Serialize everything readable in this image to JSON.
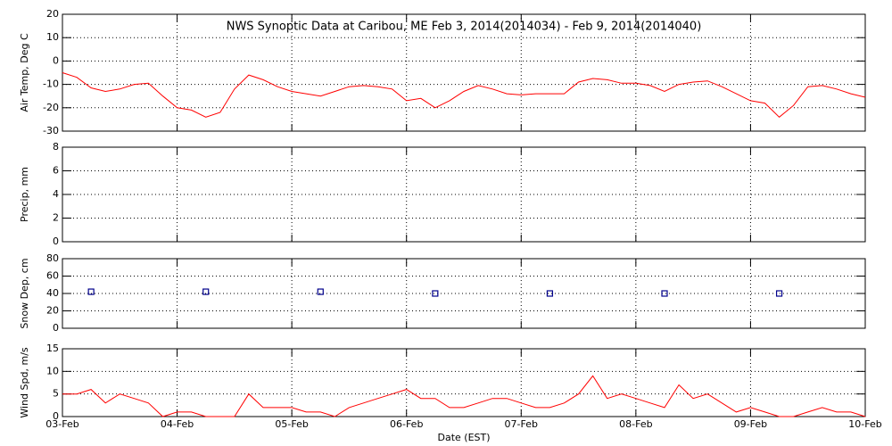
{
  "chart_data": [
    {
      "type": "line",
      "title": "NWS Synoptic Data at Caribou, ME   Feb  3, 2014(2014034) - Feb  9, 2014(2014040)",
      "ylabel": "Air Temp, Deg C",
      "ylim": [
        -30,
        20
      ],
      "yticks": [
        -30,
        -20,
        -10,
        0,
        10,
        20
      ],
      "grid": true,
      "x": [
        0,
        3,
        6,
        9,
        12,
        15,
        18,
        21,
        24,
        27,
        30,
        33,
        36,
        39,
        42,
        45,
        48,
        51,
        54,
        57,
        60,
        63,
        66,
        69,
        72,
        75,
        78,
        81,
        84,
        87,
        90,
        93,
        96,
        99,
        102,
        105,
        108,
        111,
        114,
        117,
        120,
        123,
        126,
        129,
        132,
        135,
        138,
        141,
        144,
        147,
        150,
        153,
        156,
        159,
        162,
        165,
        168
      ],
      "series": [
        {
          "name": "Air Temp",
          "color": "#ff0000",
          "values": [
            -5,
            -7,
            -11.5,
            -13,
            -12,
            -10,
            -9.5,
            -15,
            -20,
            -21,
            -24,
            -22,
            -12,
            -6,
            -8,
            -11,
            -13,
            -14,
            -15,
            -13,
            -11,
            -10.5,
            -11,
            -12,
            -17,
            -16,
            -20,
            -17,
            -13,
            -10.5,
            -12,
            -14,
            -14.5,
            -14,
            -14,
            -14,
            -9,
            -7.5,
            -8,
            -9.5,
            -9.5,
            -10.5,
            -13,
            -10,
            -9,
            -8.5,
            -11,
            -14,
            -17,
            -18,
            -24,
            -19,
            -11,
            -10.5,
            -12,
            -14,
            -15.5
          ]
        }
      ]
    },
    {
      "type": "line",
      "ylabel": "Precip, mm",
      "ylim": [
        0,
        8
      ],
      "yticks": [
        0,
        2,
        4,
        6,
        8
      ],
      "grid": true,
      "series": []
    },
    {
      "type": "scatter",
      "ylabel": "Snow Dep, cm",
      "ylim": [
        0,
        80
      ],
      "yticks": [
        0,
        20,
        40,
        60,
        80
      ],
      "grid": true,
      "x": [
        6,
        30,
        54,
        78,
        102,
        126,
        150
      ],
      "series": [
        {
          "name": "Snow Depth",
          "color": "#00008b",
          "values": [
            42,
            42,
            42,
            40,
            40,
            40,
            40
          ]
        }
      ]
    },
    {
      "type": "line",
      "ylabel": "Wind Spd, m/s",
      "xlabel": "Date (EST)",
      "ylim": [
        0,
        15
      ],
      "yticks": [
        0,
        5,
        10,
        15
      ],
      "grid": true,
      "xlim": [
        0,
        168
      ],
      "xticks": [
        {
          "value": 0,
          "label": "03-Feb"
        },
        {
          "value": 24,
          "label": "04-Feb"
        },
        {
          "value": 48,
          "label": "05-Feb"
        },
        {
          "value": 72,
          "label": "06-Feb"
        },
        {
          "value": 96,
          "label": "07-Feb"
        },
        {
          "value": 120,
          "label": "08-Feb"
        },
        {
          "value": 144,
          "label": "09-Feb"
        },
        {
          "value": 168,
          "label": "10-Feb"
        }
      ],
      "x": [
        0,
        3,
        6,
        9,
        12,
        15,
        18,
        21,
        24,
        27,
        30,
        33,
        36,
        39,
        42,
        45,
        48,
        51,
        54,
        57,
        60,
        63,
        66,
        69,
        72,
        75,
        78,
        81,
        84,
        87,
        90,
        93,
        96,
        99,
        102,
        105,
        108,
        111,
        114,
        117,
        120,
        123,
        126,
        129,
        132,
        135,
        138,
        141,
        144,
        147,
        150,
        153,
        156,
        159,
        162,
        165,
        168
      ],
      "series": [
        {
          "name": "Wind Speed",
          "color": "#ff0000",
          "values": [
            5,
            5,
            6,
            3,
            5,
            4,
            3,
            0,
            1,
            1,
            0,
            0,
            0,
            5,
            2,
            2,
            2,
            1,
            1,
            0,
            2,
            3,
            4,
            5,
            6,
            4,
            4,
            2,
            2,
            3,
            4,
            4,
            3,
            2,
            2,
            3,
            5,
            9,
            4,
            5,
            4,
            3,
            2,
            7,
            4,
            5,
            3,
            1,
            2,
            1,
            0,
            0,
            1,
            2,
            1,
            1,
            0
          ]
        }
      ]
    }
  ]
}
